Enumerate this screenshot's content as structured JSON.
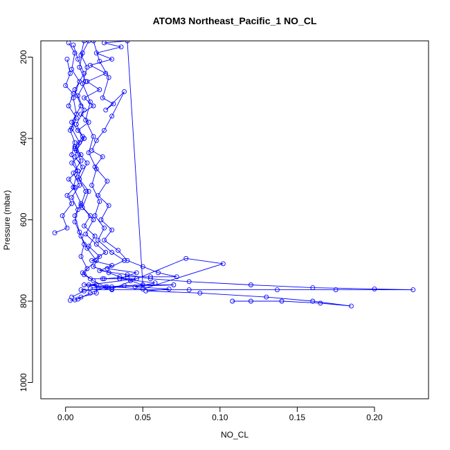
{
  "chart_data": {
    "type": "line",
    "title": "ATOM3 Northeast_Pacific_1 NO_CL",
    "xlabel": "NO_CL",
    "ylabel": "Pressure (mbar)",
    "xlim": [
      -0.016,
      0.235
    ],
    "ylim": [
      1040,
      160
    ],
    "y_reversed": true,
    "x_ticks": [
      0.0,
      0.05,
      0.1,
      0.15,
      0.2
    ],
    "x_tick_labels": [
      "0.00",
      "0.05",
      "0.10",
      "0.15",
      "0.20"
    ],
    "y_ticks": [
      200,
      400,
      600,
      800,
      1000
    ],
    "y_tick_labels": [
      "200",
      "400",
      "600",
      "800",
      "1000"
    ],
    "grid": false,
    "legend": "none",
    "color": "#0000ff",
    "marker": "open-circle",
    "series": [
      {
        "x": [
          0.002,
          0.006,
          0.004,
          0.009,
          0.005,
          0.007,
          0.003,
          0.006,
          0.004,
          0.008,
          0.005,
          0.01,
          0.006,
          0.009,
          0.012,
          0.01,
          0.014,
          0.012,
          0.016,
          0.024,
          0.035,
          0.046,
          0.015,
          0.03,
          0.078,
          0.102,
          0.05,
          0.012,
          0.02,
          0.02,
          0.01,
          0.006,
          0.003
        ],
        "y": [
          165,
          190,
          230,
          260,
          300,
          340,
          380,
          410,
          440,
          480,
          520,
          560,
          590,
          630,
          660,
          690,
          720,
          735,
          745,
          745,
          745,
          745,
          760,
          770,
          695,
          708,
          770,
          760,
          760,
          780,
          790,
          797,
          798
        ]
      },
      {
        "x": [
          0.012,
          0.01,
          0.014,
          0.011,
          0.016,
          0.013,
          0.018,
          0.015,
          0.02,
          0.017,
          0.022,
          0.019,
          0.025,
          0.021,
          0.03,
          0.038,
          0.027,
          0.046,
          0.035,
          0.058,
          0.045,
          0.067,
          0.052,
          0.087,
          0.13,
          0.16,
          0.185,
          0.165,
          0.14,
          0.12,
          0.108
        ],
        "y": [
          160,
          195,
          225,
          265,
          310,
          355,
          395,
          435,
          475,
          515,
          555,
          590,
          620,
          650,
          680,
          700,
          720,
          730,
          745,
          755,
          765,
          770,
          775,
          780,
          790,
          800,
          812,
          805,
          800,
          800,
          800
        ]
      },
      {
        "x": [
          0.005,
          0.008,
          0.012,
          0.006,
          0.01,
          0.004,
          0.012,
          0.007,
          0.014,
          0.009,
          0.015,
          0.011,
          0.018,
          0.013,
          0.02,
          0.026,
          0.017,
          0.03,
          0.022,
          0.04,
          0.055,
          0.08,
          0.12,
          0.16,
          0.2,
          0.225,
          0.175,
          0.137,
          0.08,
          0.03,
          0.01
        ],
        "y": [
          170,
          205,
          240,
          280,
          320,
          360,
          400,
          430,
          460,
          500,
          530,
          570,
          600,
          635,
          660,
          680,
          700,
          712,
          725,
          735,
          745,
          752,
          760,
          767,
          770,
          772,
          772,
          772,
          772,
          772,
          772
        ]
      },
      {
        "x": [
          -0.007,
          0.001,
          -0.002,
          0.004,
          0.001,
          0.006,
          0.002,
          0.008,
          0.004,
          0.01,
          0.006,
          0.012,
          0.008,
          0.015,
          0.01,
          0.018,
          0.012,
          0.022,
          0.014,
          0.026,
          0.016,
          0.03,
          0.02,
          0.036,
          0.025,
          0.04,
          0.05,
          0.07,
          0.03,
          0.012,
          0.004
        ],
        "y": [
          632,
          620,
          590,
          560,
          540,
          520,
          500,
          480,
          460,
          440,
          420,
          400,
          380,
          360,
          340,
          320,
          300,
          280,
          260,
          240,
          220,
          205,
          190,
          175,
          165,
          160,
          760,
          760,
          765,
          775,
          790
        ]
      },
      {
        "x": [
          0.018,
          0.022,
          0.028,
          0.024,
          0.031,
          0.026,
          0.038,
          0.03,
          0.025,
          0.02,
          0.017,
          0.024,
          0.019,
          0.027,
          0.021,
          0.028,
          0.023,
          0.03,
          0.025,
          0.034,
          0.04,
          0.05,
          0.06,
          0.072,
          0.055,
          0.04,
          0.025
        ],
        "y": [
          160,
          210,
          250,
          300,
          315,
          330,
          285,
          345,
          380,
          405,
          430,
          445,
          470,
          505,
          540,
          565,
          600,
          625,
          650,
          675,
          700,
          715,
          730,
          740,
          740,
          740,
          745
        ]
      },
      {
        "x": [
          0.001,
          0.003,
          0.0,
          0.005,
          0.002,
          0.007,
          0.004,
          0.009,
          0.006,
          0.011,
          0.008,
          0.013,
          0.01,
          0.016,
          0.012,
          0.019,
          0.015,
          0.022,
          0.018,
          0.028,
          0.035,
          0.042,
          0.05,
          0.038,
          0.027,
          0.016
        ],
        "y": [
          205,
          240,
          270,
          290,
          320,
          350,
          375,
          410,
          445,
          470,
          495,
          530,
          565,
          590,
          615,
          640,
          665,
          690,
          715,
          730,
          740,
          750,
          760,
          762,
          765,
          768
        ]
      },
      {
        "x": [
          0.015,
          0.011,
          0.009,
          0.013,
          0.008,
          0.012,
          0.007,
          0.011,
          0.006,
          0.01,
          0.005,
          0.009,
          0.004,
          0.008,
          0.006,
          0.01,
          0.014,
          0.02,
          0.011,
          0.018,
          0.026,
          0.016,
          0.008
        ],
        "y": [
          160,
          190,
          225,
          260,
          295,
          330,
          365,
          395,
          425,
          455,
          485,
          515,
          545,
          575,
          605,
          640,
          670,
          700,
          730,
          750,
          765,
          780,
          795
        ]
      }
    ]
  }
}
